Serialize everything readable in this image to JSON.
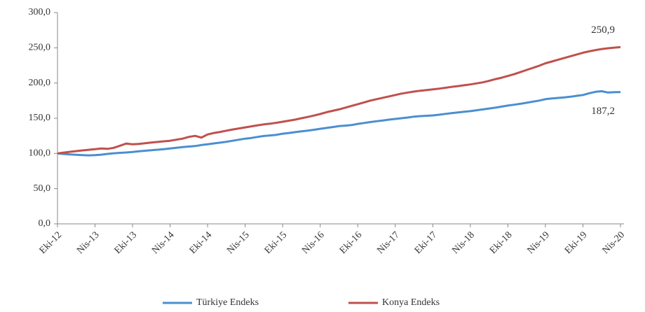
{
  "chart_data": {
    "type": "line",
    "categories": [
      "Eki-12",
      null,
      null,
      null,
      null,
      null,
      "Nis-13",
      null,
      null,
      null,
      null,
      null,
      "Eki-13",
      null,
      null,
      null,
      null,
      null,
      "Nis-14",
      null,
      null,
      null,
      null,
      null,
      "Eki-14",
      null,
      null,
      null,
      null,
      null,
      "Nis-15",
      null,
      null,
      null,
      null,
      null,
      "Eki-15",
      null,
      null,
      null,
      null,
      null,
      "Nis-16",
      null,
      null,
      null,
      null,
      null,
      "Eki-16",
      null,
      null,
      null,
      null,
      null,
      "Nis-17",
      null,
      null,
      null,
      null,
      null,
      "Eki-17",
      null,
      null,
      null,
      null,
      null,
      "Nis-18",
      null,
      null,
      null,
      null,
      null,
      "Eki-18",
      null,
      null,
      null,
      null,
      null,
      "Nis-19",
      null,
      null,
      null,
      null,
      null,
      "Eki-19",
      null,
      null,
      null,
      null,
      null,
      "Nis-20"
    ],
    "series": [
      {
        "name": "Türkiye Endeks",
        "color": "#4a8fd0",
        "values": [
          100,
          99.2,
          98.6,
          98.1,
          97.6,
          97.3,
          97.5,
          98.2,
          99.3,
          100.2,
          100.8,
          101.3,
          102,
          103,
          103.8,
          104.6,
          105.3,
          106.1,
          107,
          108,
          109,
          109.8,
          110.5,
          112,
          113,
          114.2,
          115.3,
          116.5,
          118,
          119.5,
          121,
          122,
          123.5,
          124.8,
          125.6,
          126.5,
          128,
          129,
          130.2,
          131.3,
          132.4,
          133.6,
          135,
          136.2,
          137.5,
          138.8,
          139.5,
          140.3,
          142,
          143.2,
          144.5,
          145.7,
          146.8,
          148,
          149,
          150,
          151,
          152.3,
          153,
          153.5,
          154,
          155,
          156.2,
          157.3,
          158.2,
          159.1,
          160,
          161.3,
          162.5,
          163.8,
          165,
          166.5,
          168,
          169.2,
          170.5,
          172,
          173.5,
          175,
          177,
          178,
          178.8,
          179.5,
          180.5,
          181.8,
          183,
          185.5,
          187.5,
          188.3,
          186.5,
          187,
          187.2
        ]
      },
      {
        "name": "Konya Endeks",
        "color": "#c0504d",
        "values": [
          100,
          101.2,
          102.3,
          103.3,
          104.3,
          105.2,
          106,
          107,
          106.5,
          108,
          111,
          114,
          113,
          113.5,
          114.5,
          115.5,
          116.3,
          117.2,
          118,
          119.5,
          121,
          123.5,
          125,
          122.5,
          127,
          129,
          130.5,
          132.3,
          134,
          135.5,
          137,
          138.5,
          140,
          141.3,
          142.3,
          143.5,
          145,
          146.5,
          148,
          150,
          151.8,
          153.8,
          156,
          158.5,
          160.5,
          162.5,
          165,
          167.5,
          170,
          172.5,
          175,
          177,
          179,
          181,
          183,
          185,
          186.5,
          187.8,
          189,
          190,
          191,
          192,
          193.2,
          194.5,
          195.6,
          196.8,
          198,
          199.5,
          201,
          203,
          205.5,
          207.5,
          210,
          212.5,
          215.5,
          218.5,
          221.5,
          224.5,
          228,
          230.5,
          233,
          235.5,
          238,
          240.5,
          243,
          245,
          246.8,
          248.2,
          249.3,
          250.2,
          250.9
        ]
      }
    ],
    "annotations": [
      {
        "text": "187,2"
      },
      {
        "text": "250,9"
      }
    ],
    "ylim": [
      0,
      300
    ],
    "yticks": [
      {
        "value": 0,
        "label": "0,0"
      },
      {
        "value": 50,
        "label": "50,0"
      },
      {
        "value": 100,
        "label": "100,0"
      },
      {
        "value": 150,
        "label": "150,0"
      },
      {
        "value": 200,
        "label": "200,0"
      },
      {
        "value": 250,
        "label": "250,0"
      },
      {
        "value": 300,
        "label": "300,0"
      }
    ],
    "grid": false,
    "legend": "bottom"
  }
}
